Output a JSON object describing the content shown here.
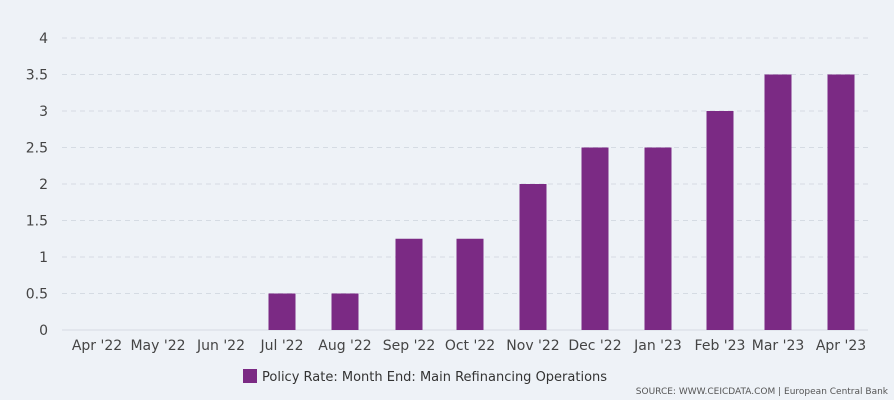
{
  "chart_data": {
    "type": "bar",
    "title": "",
    "xlabel": "",
    "ylabel": "",
    "categories": [
      "Apr '22",
      "May '22",
      "Jun '22",
      "Jul '22",
      "Aug '22",
      "Sep '22",
      "Oct '22",
      "Nov '22",
      "Dec '22",
      "Jan '23",
      "Feb '23",
      "Mar '23",
      "Apr '23"
    ],
    "series": [
      {
        "name": "Policy Rate: Month End: Main Refinancing Operations",
        "values": [
          0,
          0,
          0,
          0.5,
          0.5,
          1.25,
          1.25,
          2,
          2.5,
          2.5,
          3,
          3.5,
          3.5
        ],
        "color": "#7b2a84"
      }
    ],
    "ylim": [
      0,
      4
    ],
    "yticks": [
      0,
      0.5,
      1,
      1.5,
      2,
      2.5,
      3,
      3.5,
      4
    ],
    "ytick_labels": [
      "0",
      "0.5",
      "1",
      "1.5",
      "2",
      "2.5",
      "3",
      "3.5",
      "4"
    ],
    "grid": true,
    "legend_position": "bottom-center"
  },
  "source": {
    "text": "SOURCE: WWW.CEICDATA.COM | European Central Bank"
  },
  "colors": {
    "background": "#eef2f7",
    "gridline": "#d5dbe3",
    "bar": "#7b2a84"
  }
}
